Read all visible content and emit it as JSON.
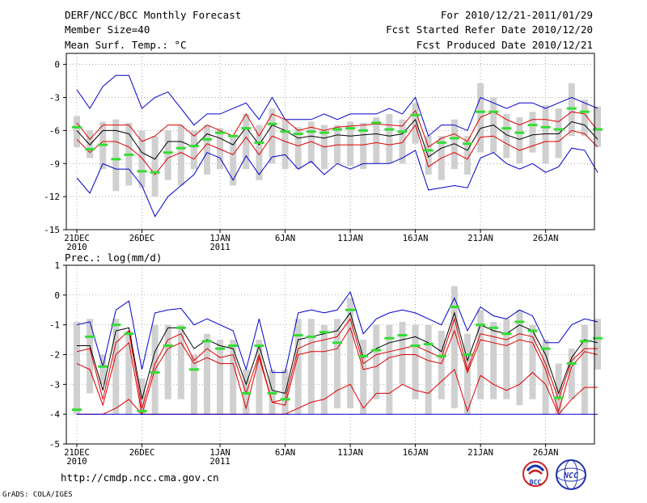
{
  "header": {
    "title": "DERF/NCC/BCC Monthly Forecast",
    "member_size": "Member Size=40",
    "variable": "Mean Surf. Temp.: °C",
    "period": "For 2010/12/21-2011/01/29",
    "started": "Fcst Started Refer Date 2010/12/20",
    "produced": "Fcst Produced Date 2010/12/21"
  },
  "footer": {
    "url": "http://cmdp.ncc.cma.gov.cn",
    "credit": "GrADS: COLA/IGES",
    "logo_bcc": "BCC",
    "logo_ncc": "NCC"
  },
  "colors": {
    "box": "#d0d0d0",
    "green": "#33dd33",
    "mean": "#000000",
    "spread": "#dd0000",
    "extreme": "#0000cc"
  },
  "chart_data": [
    {
      "type": "line",
      "id": "temp",
      "title": "Mean Surf. Temp.: °C",
      "ylim": [
        -15,
        1
      ],
      "yticks": [
        0,
        -3,
        -6,
        -9,
        -12,
        -15
      ],
      "xticks": [
        {
          "day": 0,
          "label": "21DEC",
          "label2": "2010"
        },
        {
          "day": 5,
          "label": "26DEC",
          "label2": ""
        },
        {
          "day": 11,
          "label": "1JAN",
          "label2": "2011"
        },
        {
          "day": 16,
          "label": "6JAN",
          "label2": ""
        },
        {
          "day": 21,
          "label": "11JAN",
          "label2": ""
        },
        {
          "day": 26,
          "label": "16JAN",
          "label2": ""
        },
        {
          "day": 31,
          "label": "21JAN",
          "label2": ""
        },
        {
          "day": 36,
          "label": "26JAN",
          "label2": ""
        }
      ],
      "series": [
        {
          "name": "max",
          "role": "extreme",
          "values": [
            -2.3,
            -4,
            -2,
            -1,
            -1,
            -4,
            -3,
            -2.5,
            -4,
            -5.5,
            -4.5,
            -4.5,
            -4,
            -3.5,
            -5,
            -3,
            -5,
            -5,
            -5,
            -4.5,
            -5,
            -4.5,
            -4.5,
            -4.5,
            -4,
            -4.5,
            -3,
            -6.5,
            -5.5,
            -5.5,
            -6,
            -3,
            -3.5,
            -4,
            -3.5,
            -3.5,
            -4,
            -3.5,
            -3,
            -3.5,
            -4
          ]
        },
        {
          "name": "upper",
          "role": "spread",
          "values": [
            -5.3,
            -6.8,
            -5.5,
            -5.5,
            -5.5,
            -7,
            -6.5,
            -5.5,
            -5.5,
            -6.5,
            -5.5,
            -6,
            -6.5,
            -4.5,
            -6.5,
            -4.5,
            -5,
            -6,
            -5.7,
            -6,
            -5.7,
            -5.6,
            -5.5,
            -5.4,
            -5.5,
            -5.6,
            -4.2,
            -7.5,
            -6.7,
            -6.3,
            -7,
            -4.8,
            -4.3,
            -5,
            -5.5,
            -5,
            -5,
            -5.2,
            -4.3,
            -4.5,
            -6
          ]
        },
        {
          "name": "mean",
          "role": "mean",
          "values": [
            -6,
            -7.3,
            -6,
            -6,
            -6.3,
            -8,
            -8.6,
            -7,
            -7,
            -7.5,
            -6.3,
            -6.7,
            -7.3,
            -5.7,
            -7.3,
            -5.5,
            -6,
            -6.7,
            -6.5,
            -6.7,
            -6.4,
            -6.5,
            -6.4,
            -6.3,
            -6.5,
            -6.3,
            -5,
            -8.4,
            -7.6,
            -7.2,
            -7.8,
            -5.8,
            -5.5,
            -6.4,
            -6.8,
            -6.4,
            -6.3,
            -6.3,
            -5.2,
            -5.5,
            -6.8
          ]
        },
        {
          "name": "lower",
          "role": "spread",
          "values": [
            -6.8,
            -8,
            -7,
            -7,
            -7.5,
            -8.5,
            -10,
            -8.5,
            -8,
            -8.6,
            -7.2,
            -7.7,
            -8.2,
            -6.6,
            -8.2,
            -6.5,
            -7,
            -7.4,
            -7,
            -7.5,
            -7.3,
            -7.3,
            -7.3,
            -7.1,
            -7.3,
            -7.1,
            -5.5,
            -9.3,
            -8.5,
            -8,
            -8.6,
            -6.6,
            -6.5,
            -7.2,
            -7.8,
            -7.4,
            -7,
            -7,
            -6,
            -6.3,
            -7.5
          ]
        },
        {
          "name": "min",
          "role": "extreme",
          "values": [
            -10.3,
            -11.7,
            -9,
            -9.5,
            -9.5,
            -11,
            -13.8,
            -12,
            -11,
            -10,
            -8,
            -8.5,
            -10.5,
            -8.3,
            -10,
            -8.4,
            -8.2,
            -9.5,
            -8.8,
            -10,
            -9,
            -9.5,
            -9,
            -9,
            -9,
            -8.5,
            -7.8,
            -11.4,
            -11.2,
            -11,
            -11.2,
            -8.5,
            -8,
            -9,
            -9.5,
            -9,
            -9.8,
            -9.3,
            -7.6,
            -7.8,
            -9.8
          ]
        }
      ],
      "boxes": [
        [
          -7.5,
          -4.7
        ],
        [
          -8.5,
          -6
        ],
        [
          -9.5,
          -5.2
        ],
        [
          -11.5,
          -5
        ],
        [
          -11,
          -5.3
        ],
        [
          -11.2,
          -6
        ],
        [
          -12,
          -6.5
        ],
        [
          -10.5,
          -6
        ],
        [
          -11,
          -5.5
        ],
        [
          -9.5,
          -6
        ],
        [
          -10,
          -5.5
        ],
        [
          -9.5,
          -5.8
        ],
        [
          -11,
          -6.5
        ],
        [
          -9.5,
          -4.5
        ],
        [
          -10.5,
          -5.5
        ],
        [
          -9,
          -4
        ],
        [
          -9.5,
          -5
        ],
        [
          -9.5,
          -5.7
        ],
        [
          -9,
          -5.2
        ],
        [
          -9.5,
          -5.5
        ],
        [
          -9,
          -5.5
        ],
        [
          -9.2,
          -5.2
        ],
        [
          -9.5,
          -5.3
        ],
        [
          -9,
          -4.8
        ],
        [
          -9,
          -4.5
        ],
        [
          -9,
          -5
        ],
        [
          -7.2,
          -3.5
        ],
        [
          -10,
          -6.5
        ],
        [
          -10.5,
          -6.5
        ],
        [
          -9.5,
          -5
        ],
        [
          -10,
          -6.5
        ],
        [
          -8,
          -1.7
        ],
        [
          -8,
          -3
        ],
        [
          -8.5,
          -4.5
        ],
        [
          -9,
          -4.8
        ],
        [
          -8,
          -4.3
        ],
        [
          -9,
          -3.7
        ],
        [
          -8.5,
          -4
        ],
        [
          -6.5,
          -1.7
        ],
        [
          -6.5,
          -3.2
        ],
        [
          -7.5,
          -3.8
        ]
      ],
      "greens": [
        -5.7,
        -7.7,
        -7.3,
        -8.6,
        -8.2,
        -9.7,
        -9.8,
        -8,
        -7.6,
        -7.4,
        -6.8,
        -6.2,
        -6.5,
        -5.8,
        -7.1,
        -5.4,
        -6.1,
        -6.3,
        -6.1,
        -6.2,
        -5.9,
        -5.8,
        -6,
        -5.3,
        -5.9,
        -6.1,
        -4.6,
        -7.8,
        -7.1,
        -6.7,
        -7.2,
        -4.3,
        -4.3,
        -5.8,
        -6.2,
        -5.5,
        -5.7,
        -5.9,
        -4,
        -4.3,
        -5.9
      ]
    },
    {
      "type": "line",
      "id": "prec",
      "title": "Prec.: log(mm/d)",
      "ylim": [
        -5,
        1
      ],
      "yticks": [
        1,
        0,
        -1,
        -2,
        -3,
        -4,
        -5
      ],
      "xticks": [
        {
          "day": 0,
          "label": "21DEC",
          "label2": "2010"
        },
        {
          "day": 5,
          "label": "26DEC",
          "label2": ""
        },
        {
          "day": 11,
          "label": "1JAN",
          "label2": "2011"
        },
        {
          "day": 16,
          "label": "6JAN",
          "label2": ""
        },
        {
          "day": 21,
          "label": "11JAN",
          "label2": ""
        },
        {
          "day": 26,
          "label": "16JAN",
          "label2": ""
        },
        {
          "day": 31,
          "label": "21JAN",
          "label2": ""
        },
        {
          "day": 36,
          "label": "26JAN",
          "label2": ""
        }
      ],
      "series": [
        {
          "name": "max",
          "role": "extreme",
          "values": [
            -1,
            -0.9,
            -2.4,
            -0.5,
            -0.2,
            -2.5,
            -0.6,
            -0.5,
            -0.45,
            -1,
            -0.8,
            -1,
            -1.2,
            -2.5,
            -0.8,
            -2.6,
            -2.6,
            -0.6,
            -0.5,
            -0.6,
            -0.5,
            0.1,
            -1.3,
            -0.8,
            -0.6,
            -0.5,
            -0.6,
            -0.8,
            -1,
            -0.1,
            -1.2,
            -0.4,
            -0.7,
            -0.8,
            -0.5,
            -0.7,
            -1.6,
            -1.6,
            -1,
            -0.8,
            -0.9
          ]
        },
        {
          "name": "mean",
          "role": "mean",
          "values": [
            -1.7,
            -1.7,
            -3.2,
            -1.2,
            -1.1,
            -3.5,
            -1.9,
            -1.1,
            -1.1,
            -1.8,
            -1.5,
            -1.7,
            -1.8,
            -3,
            -1.7,
            -3.2,
            -3.3,
            -1.5,
            -1.4,
            -1.3,
            -1.2,
            -0.6,
            -2.1,
            -1.8,
            -1.6,
            -1.5,
            -1.4,
            -1.6,
            -1.9,
            -0.6,
            -2.2,
            -1,
            -1.2,
            -1.3,
            -1,
            -1.2,
            -2,
            -3.3,
            -2.1,
            -1.5,
            -1.6
          ]
        },
        {
          "name": "upper",
          "role": "spread",
          "values": [
            -1.9,
            -1.8,
            -3.5,
            -1.6,
            -1.2,
            -3.8,
            -2.3,
            -1.5,
            -1.3,
            -2.2,
            -1.8,
            -2.1,
            -2,
            -3.3,
            -2,
            -3.6,
            -3.5,
            -1.8,
            -1.6,
            -1.5,
            -1.4,
            -0.8,
            -2.3,
            -2,
            -1.9,
            -1.8,
            -1.7,
            -1.9,
            -2.1,
            -0.8,
            -2.5,
            -1.3,
            -1.4,
            -1.5,
            -1.3,
            -1.4,
            -2.3,
            -3.5,
            -2.2,
            -1.8,
            -1.8
          ]
        },
        {
          "name": "lower",
          "role": "spread",
          "values": [
            -2.3,
            -2.5,
            -3.7,
            -2,
            -1.6,
            -4,
            -2.5,
            -1.8,
            -1.6,
            -2.3,
            -2.1,
            -2.3,
            -2.3,
            -3.8,
            -2.1,
            -3.6,
            -3.7,
            -2,
            -1.9,
            -1.9,
            -1.8,
            -1.1,
            -2.5,
            -2.4,
            -2.1,
            -2,
            -2,
            -2.2,
            -2.3,
            -1.2,
            -2.6,
            -1.5,
            -1.6,
            -1.7,
            -1.5,
            -1.6,
            -2.5,
            -3.9,
            -2.4,
            -1.9,
            -2
          ]
        },
        {
          "name": "low",
          "role": "spread",
          "values": [
            -4,
            -4,
            -4,
            -3.8,
            -3.5,
            -4,
            -4,
            -4,
            -4,
            -4,
            -4,
            -4,
            -4,
            -4,
            -4,
            -4,
            -4,
            -3.8,
            -3.6,
            -3.5,
            -3.2,
            -3,
            -3.8,
            -3.3,
            -3.3,
            -3,
            -3.2,
            -3.3,
            -2.9,
            -2.5,
            -3.9,
            -2.7,
            -3,
            -3.2,
            -3,
            -2.6,
            -3,
            -4,
            -3.5,
            -3.1,
            -3.1
          ]
        },
        {
          "name": "floor",
          "role": "extreme",
          "values": [
            -4,
            -4,
            -4,
            -4,
            -4,
            -4,
            -4,
            -4,
            -4,
            -4,
            -4,
            -4,
            -4,
            -4,
            -4,
            -4,
            -4,
            -4,
            -4,
            -4,
            -4,
            -4,
            -4,
            -4,
            -4,
            -4,
            -4,
            -4,
            -4,
            -4,
            -4,
            -4,
            -4,
            -4,
            -4,
            -4,
            -4,
            -4,
            -4,
            -4,
            -4
          ]
        }
      ],
      "boxes": [
        [
          -4,
          -0.9
        ],
        [
          -3.3,
          -0.8
        ],
        [
          -3,
          -2
        ],
        [
          -4,
          -0.8
        ],
        [
          -4,
          -1.2
        ],
        [
          -4,
          -2.8
        ],
        [
          -4,
          -1
        ],
        [
          -3.5,
          -1
        ],
        [
          -3.5,
          -1
        ],
        [
          -4,
          -2
        ],
        [
          -4,
          -1.3
        ],
        [
          -4,
          -1.5
        ],
        [
          -4,
          -1.5
        ],
        [
          -4,
          -2.5
        ],
        [
          -4,
          -1.5
        ],
        [
          -4,
          -2.5
        ],
        [
          -4,
          -2.5
        ],
        [
          -4,
          -0.8
        ],
        [
          -4,
          -0.8
        ],
        [
          -4,
          -1
        ],
        [
          -3.8,
          -0.8
        ],
        [
          -3.8,
          -0.1
        ],
        [
          -4,
          -1.5
        ],
        [
          -3.5,
          -1
        ],
        [
          -4,
          -1
        ],
        [
          -3,
          -0.9
        ],
        [
          -3.5,
          -1
        ],
        [
          -4,
          -1
        ],
        [
          -3.5,
          -1.2
        ],
        [
          -3.8,
          0.3
        ],
        [
          -4,
          -1.3
        ],
        [
          -3.5,
          -0.5
        ],
        [
          -3.5,
          -0.9
        ],
        [
          -3.5,
          -0.8
        ],
        [
          -3.7,
          -0.5
        ],
        [
          -3.5,
          -1
        ],
        [
          -4,
          -1.5
        ],
        [
          -4,
          -2.3
        ],
        [
          -3.5,
          -1.8
        ],
        [
          -4,
          -1
        ],
        [
          -2.5,
          -0.8
        ]
      ],
      "greens": [
        -3.85,
        -1.4,
        -2.4,
        -1,
        -1.3,
        -3.9,
        -2.6,
        -1.7,
        -1.1,
        -2.5,
        -1.55,
        -1.8,
        -1.7,
        -3.3,
        -1.7,
        -3.3,
        -3.5,
        -1.35,
        -1.4,
        -1.25,
        -1.6,
        -0.5,
        -2.05,
        -1.85,
        -1.45,
        -1.35,
        -1.7,
        -1.65,
        -2.05,
        -0.4,
        -2.0,
        -1.0,
        -1.1,
        -1.3,
        -0.9,
        -1.2,
        -1.8,
        -3.45,
        -2.3,
        -1.55,
        -1.45
      ]
    }
  ]
}
